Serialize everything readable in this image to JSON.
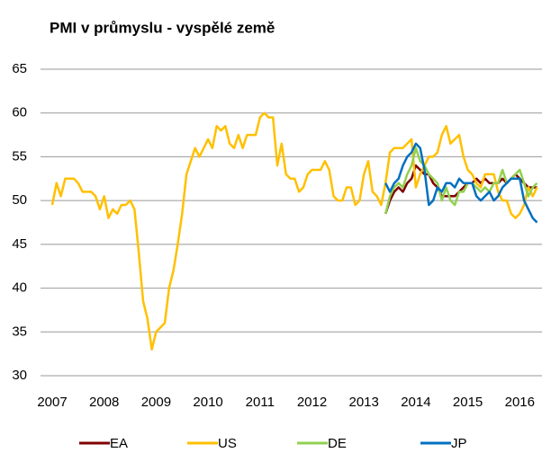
{
  "chart_data": {
    "type": "line",
    "title": "PMI v průmyslu - vyspělé země",
    "categories": [
      "2007",
      null,
      null,
      null,
      null,
      null,
      null,
      null,
      null,
      null,
      null,
      null,
      "2008",
      null,
      null,
      null,
      null,
      null,
      null,
      null,
      null,
      null,
      null,
      null,
      "2009",
      null,
      null,
      null,
      null,
      null,
      null,
      null,
      null,
      null,
      null,
      null,
      "2010",
      null,
      null,
      null,
      null,
      null,
      null,
      null,
      null,
      null,
      null,
      null,
      "2011",
      null,
      null,
      null,
      null,
      null,
      null,
      null,
      null,
      null,
      null,
      null,
      "2012",
      null,
      null,
      null,
      null,
      null,
      null,
      null,
      null,
      null,
      null,
      null,
      "2013",
      null,
      null,
      null,
      null,
      null,
      null,
      null,
      null,
      null,
      null,
      null,
      "2014",
      null,
      null,
      null,
      null,
      null,
      null,
      null,
      null,
      null,
      null,
      null,
      "2015",
      null,
      null,
      null,
      null,
      null,
      null,
      null,
      null,
      null,
      null,
      null,
      "2016",
      null,
      null,
      null,
      null
    ],
    "series": [
      {
        "name": "EA",
        "color": "#800000",
        "values": [
          null,
          null,
          null,
          null,
          null,
          null,
          null,
          null,
          null,
          null,
          null,
          null,
          null,
          null,
          null,
          null,
          null,
          null,
          null,
          null,
          null,
          null,
          null,
          null,
          null,
          null,
          null,
          null,
          null,
          null,
          null,
          null,
          null,
          null,
          null,
          null,
          null,
          null,
          null,
          null,
          null,
          null,
          null,
          null,
          null,
          null,
          null,
          null,
          null,
          null,
          null,
          null,
          null,
          null,
          null,
          null,
          null,
          null,
          null,
          null,
          null,
          null,
          null,
          null,
          null,
          null,
          null,
          null,
          null,
          null,
          null,
          null,
          null,
          null,
          null,
          null,
          null,
          48.5,
          50,
          51,
          51.5,
          51,
          52,
          52.5,
          54,
          53.5,
          53,
          53,
          52,
          51.5,
          50.5,
          50.5,
          50.5,
          50.5,
          51,
          51.5,
          52,
          52,
          52.5,
          52,
          52.5,
          52,
          52,
          52,
          52.5,
          52,
          52.5,
          53,
          52.5,
          52,
          51.5,
          51.5,
          51.5
        ]
      },
      {
        "name": "US",
        "color": "#ffc000",
        "values": [
          49.5,
          52,
          50.5,
          52.5,
          52.5,
          52.5,
          52,
          51,
          51,
          51,
          50.5,
          49,
          50.5,
          48,
          49,
          48.5,
          49.5,
          49.5,
          50,
          49,
          44,
          38.5,
          36.5,
          33,
          35,
          35.5,
          36,
          40,
          42,
          45,
          48.5,
          53,
          54.5,
          56,
          55,
          56,
          57,
          56,
          58.5,
          58,
          58.5,
          56.5,
          56,
          57.5,
          56,
          57.5,
          57.5,
          57.5,
          59.5,
          60,
          59.5,
          59.5,
          54,
          56.5,
          53,
          52.5,
          52.5,
          51,
          51.5,
          53,
          53.5,
          53.5,
          53.5,
          54.5,
          53.5,
          50.5,
          50,
          50,
          51.5,
          51.5,
          49.5,
          50,
          53,
          54.5,
          51,
          50.5,
          49.5,
          52,
          55.5,
          56,
          56,
          56,
          56.5,
          57,
          51.5,
          53,
          54,
          55,
          55,
          55.5,
          57.5,
          58.5,
          56.5,
          57,
          57.5,
          55,
          53.5,
          53,
          52,
          51.5,
          53,
          53,
          53,
          51,
          50,
          50,
          48.5,
          48,
          48.5,
          49.5,
          51.5,
          50.5,
          51.5
        ]
      },
      {
        "name": "DE",
        "color": "#92d050",
        "values": [
          null,
          null,
          null,
          null,
          null,
          null,
          null,
          null,
          null,
          null,
          null,
          null,
          null,
          null,
          null,
          null,
          null,
          null,
          null,
          null,
          null,
          null,
          null,
          null,
          null,
          null,
          null,
          null,
          null,
          null,
          null,
          null,
          null,
          null,
          null,
          null,
          null,
          null,
          null,
          null,
          null,
          null,
          null,
          null,
          null,
          null,
          null,
          null,
          null,
          null,
          null,
          null,
          null,
          null,
          null,
          null,
          null,
          null,
          null,
          null,
          null,
          null,
          null,
          null,
          null,
          null,
          null,
          null,
          null,
          null,
          null,
          null,
          null,
          null,
          null,
          null,
          null,
          48.5,
          50.5,
          51.5,
          52,
          51.5,
          53,
          54,
          56,
          54.5,
          54,
          53,
          52.5,
          52,
          50,
          51.5,
          50,
          49.5,
          51,
          51,
          52,
          52,
          51.5,
          51,
          51.5,
          51,
          52,
          52,
          53.5,
          52,
          52.5,
          53,
          53.5,
          52,
          50.5,
          51.5,
          52
        ]
      },
      {
        "name": "JP",
        "color": "#0070c0",
        "values": [
          null,
          null,
          null,
          null,
          null,
          null,
          null,
          null,
          null,
          null,
          null,
          null,
          null,
          null,
          null,
          null,
          null,
          null,
          null,
          null,
          null,
          null,
          null,
          null,
          null,
          null,
          null,
          null,
          null,
          null,
          null,
          null,
          null,
          null,
          null,
          null,
          null,
          null,
          null,
          null,
          null,
          null,
          null,
          null,
          null,
          null,
          null,
          null,
          null,
          null,
          null,
          null,
          null,
          null,
          null,
          null,
          null,
          null,
          null,
          null,
          null,
          null,
          null,
          null,
          null,
          null,
          null,
          null,
          null,
          null,
          null,
          null,
          null,
          null,
          null,
          null,
          null,
          52,
          51,
          52,
          52.5,
          54,
          55,
          55.5,
          56.5,
          56,
          53.5,
          49.5,
          50,
          51.5,
          51,
          52,
          52,
          51.5,
          52.5,
          52,
          52,
          52,
          50.5,
          50,
          50.5,
          51,
          50,
          50.5,
          51.5,
          52,
          52.5,
          52.5,
          52.5,
          50,
          49,
          48,
          47.5
        ]
      }
    ],
    "ylim": [
      30,
      65
    ],
    "yticks": [
      30,
      35,
      40,
      45,
      50,
      55,
      60,
      65
    ],
    "grid": true
  }
}
